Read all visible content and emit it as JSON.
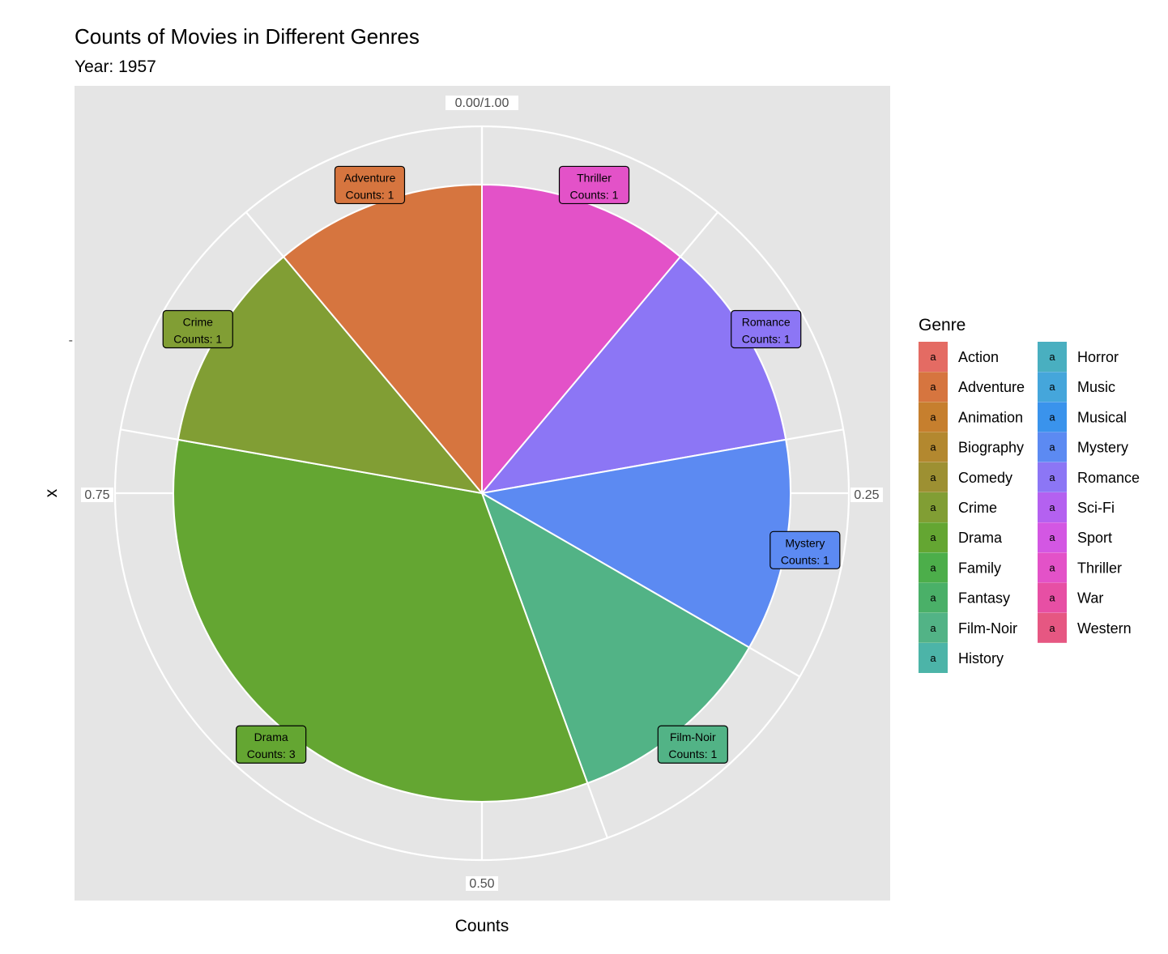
{
  "chart_data": {
    "type": "pie",
    "title": "Counts of Movies in Different Genres",
    "subtitle": "Year: 1957",
    "xlabel": "Counts",
    "ylabel": "x",
    "y_tick": "-",
    "theta_ticks": [
      "0.00/1.00",
      "0.25",
      "0.50",
      "0.75"
    ],
    "slices": [
      {
        "genre": "Thriller",
        "count": 1,
        "color": "#E352C8",
        "label": [
          "Thriller",
          "Counts: 1"
        ]
      },
      {
        "genre": "Romance",
        "count": 1,
        "color": "#8C76F5",
        "label": [
          "Romance",
          "Counts: 1"
        ]
      },
      {
        "genre": "Mystery",
        "count": 1,
        "color": "#5C8AF2",
        "label": [
          "Mystery",
          "Counts: 1"
        ]
      },
      {
        "genre": "Film-Noir",
        "count": 1,
        "color": "#52B386",
        "label": [
          "Film-Noir",
          "Counts: 1"
        ]
      },
      {
        "genre": "Drama",
        "count": 3,
        "color": "#64A632",
        "label": [
          "Drama",
          "Counts: 3"
        ]
      },
      {
        "genre": "Crime",
        "count": 1,
        "color": "#819E34",
        "label": [
          "Crime",
          "Counts: 1"
        ]
      },
      {
        "genre": "Adventure",
        "count": 1,
        "color": "#D6753F",
        "label": [
          "Adventure",
          "Counts: 1"
        ]
      }
    ],
    "legend": {
      "title": "Genre",
      "placement": "right",
      "key_glyph": "a",
      "entries": [
        {
          "name": "Action",
          "color": "#E46B63"
        },
        {
          "name": "Adventure",
          "color": "#D6753F"
        },
        {
          "name": "Animation",
          "color": "#C67F2E"
        },
        {
          "name": "Biography",
          "color": "#B3882F"
        },
        {
          "name": "Comedy",
          "color": "#9D9032"
        },
        {
          "name": "Crime",
          "color": "#819E34"
        },
        {
          "name": "Drama",
          "color": "#64A632"
        },
        {
          "name": "Family",
          "color": "#4CAE4A"
        },
        {
          "name": "Fantasy",
          "color": "#4AB068"
        },
        {
          "name": "Film-Noir",
          "color": "#52B386"
        },
        {
          "name": "History",
          "color": "#4CB4A8"
        },
        {
          "name": "Horror",
          "color": "#49AFC0"
        },
        {
          "name": "Music",
          "color": "#45A6DB"
        },
        {
          "name": "Musical",
          "color": "#3A93EC"
        },
        {
          "name": "Mystery",
          "color": "#5C8AF2"
        },
        {
          "name": "Romance",
          "color": "#8C76F5"
        },
        {
          "name": "Sci-Fi",
          "color": "#B461F0"
        },
        {
          "name": "Sport",
          "color": "#D357E3"
        },
        {
          "name": "Thriller",
          "color": "#E352C8"
        },
        {
          "name": "War",
          "color": "#E74FA4"
        },
        {
          "name": "Western",
          "color": "#E65782"
        }
      ]
    }
  }
}
